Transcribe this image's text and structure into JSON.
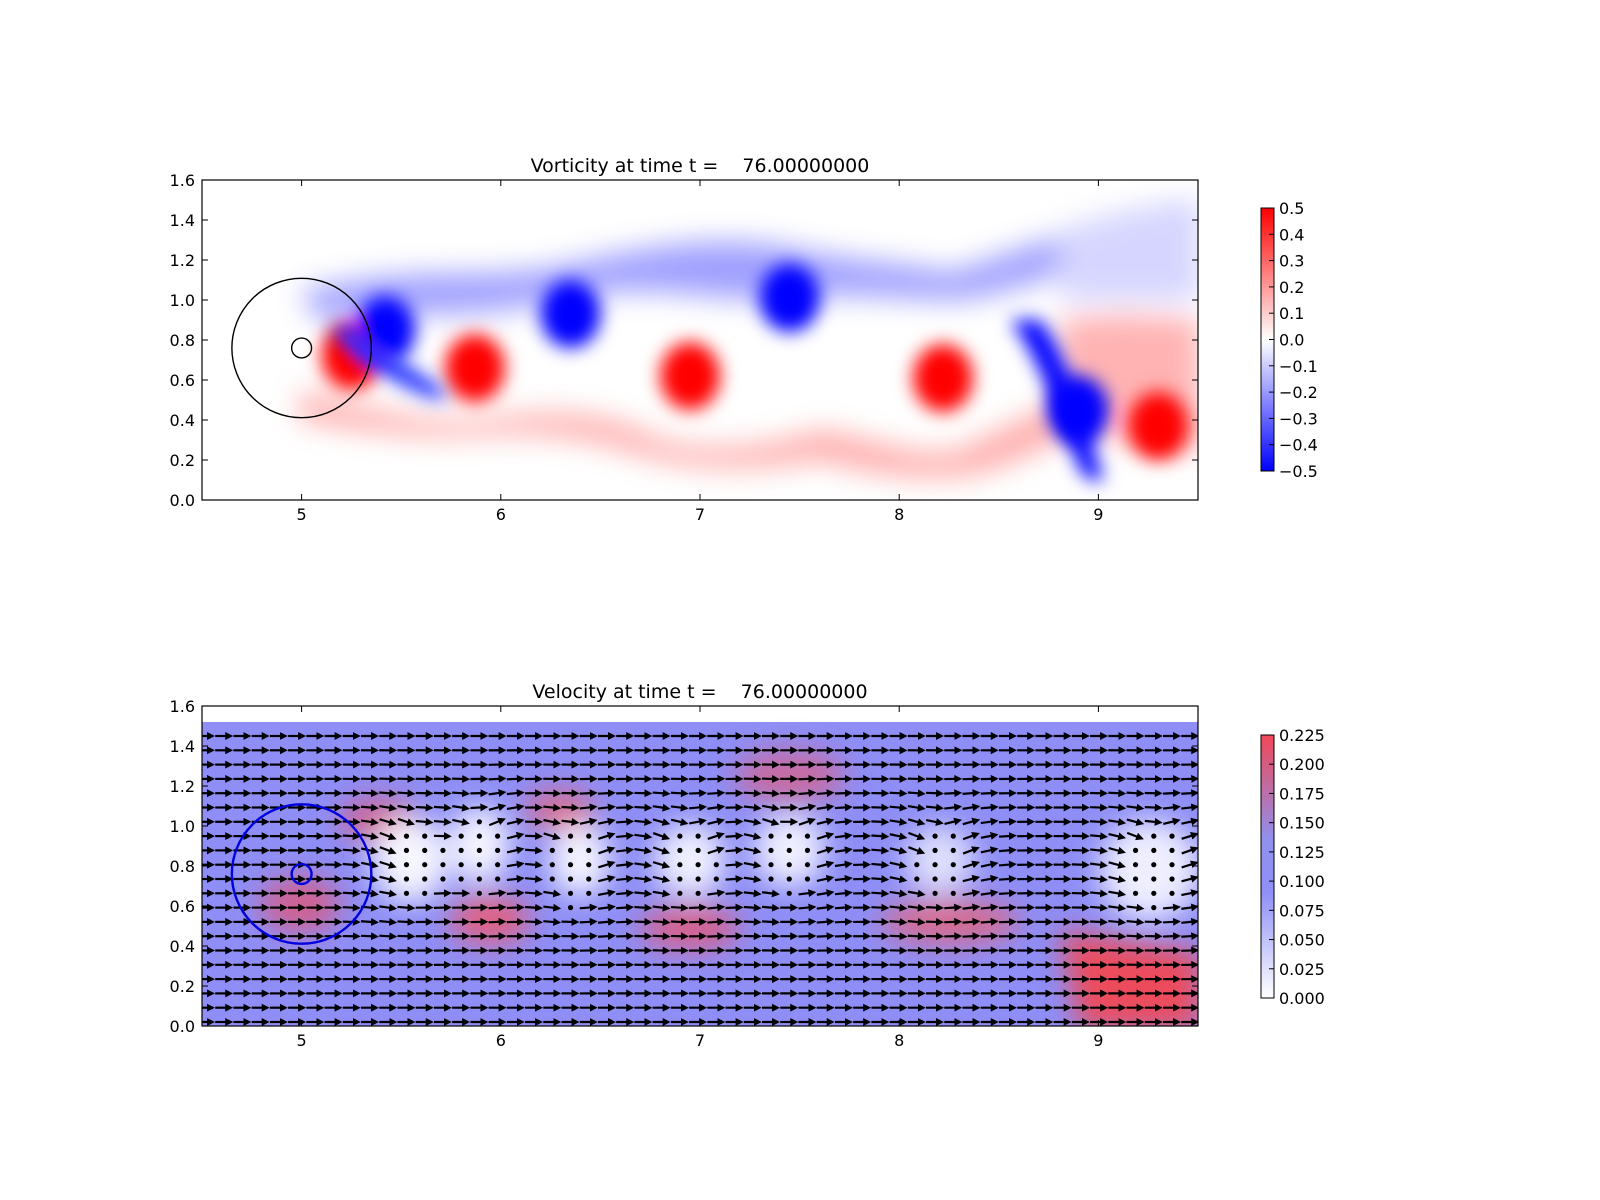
{
  "chart_data": [
    {
      "type": "heatmap",
      "title": "Vorticity at time t =    76.00000000",
      "xlabel": "",
      "ylabel": "",
      "xlim": [
        4.5,
        9.5
      ],
      "ylim": [
        0.0,
        1.6
      ],
      "x_ticks": [
        "5",
        "6",
        "7",
        "8",
        "9"
      ],
      "y_ticks": [
        "0.0",
        "0.2",
        "0.4",
        "0.6",
        "0.8",
        "1.0",
        "1.2",
        "1.4",
        "1.6"
      ],
      "colormap": "bwr",
      "color_range": [
        -0.5,
        0.5
      ],
      "colorbar_ticks": [
        "0.5",
        "0.4",
        "0.3",
        "0.2",
        "0.1",
        "0.0",
        "−0.1",
        "−0.2",
        "−0.3",
        "−0.4",
        "−0.5"
      ],
      "circles": [
        {
          "center": [
            5.0,
            0.76
          ],
          "radius": 0.35,
          "color": "#000000"
        },
        {
          "center": [
            5.0,
            0.76
          ],
          "radius": 0.05,
          "color": "#000000"
        }
      ],
      "vortices": [
        {
          "x": 5.25,
          "y": 0.72,
          "sign": 1
        },
        {
          "x": 5.42,
          "y": 0.85,
          "sign": -1
        },
        {
          "x": 5.87,
          "y": 0.66,
          "sign": 1
        },
        {
          "x": 6.35,
          "y": 0.93,
          "sign": -1
        },
        {
          "x": 6.95,
          "y": 0.62,
          "sign": 1
        },
        {
          "x": 7.45,
          "y": 1.01,
          "sign": -1
        },
        {
          "x": 8.22,
          "y": 0.61,
          "sign": 1
        },
        {
          "x": 8.9,
          "y": 0.45,
          "sign": -1
        },
        {
          "x": 9.3,
          "y": 0.37,
          "sign": 1
        }
      ]
    },
    {
      "type": "heatmap",
      "title": "Velocity at time t =    76.00000000",
      "xlabel": "",
      "ylabel": "",
      "xlim": [
        4.5,
        9.5
      ],
      "ylim": [
        0.0,
        1.6
      ],
      "x_ticks": [
        "5",
        "6",
        "7",
        "8",
        "9"
      ],
      "y_ticks": [
        "0.0",
        "0.2",
        "0.4",
        "0.6",
        "0.8",
        "1.0",
        "1.2",
        "1.4",
        "1.6"
      ],
      "field_extent_y": [
        0.0,
        1.52
      ],
      "colormap": "white-blue-red",
      "color_range": [
        0.0,
        0.23
      ],
      "colorbar_ticks": [
        "0.225",
        "0.200",
        "0.175",
        "0.150",
        "0.125",
        "0.100",
        "0.075",
        "0.050",
        "0.025",
        "0.000"
      ],
      "quiver": true,
      "circles": [
        {
          "center": [
            5.0,
            0.76
          ],
          "radius": 0.35,
          "color": "#0000dd"
        },
        {
          "center": [
            5.0,
            0.76
          ],
          "radius": 0.05,
          "color": "#0000dd"
        }
      ]
    }
  ]
}
